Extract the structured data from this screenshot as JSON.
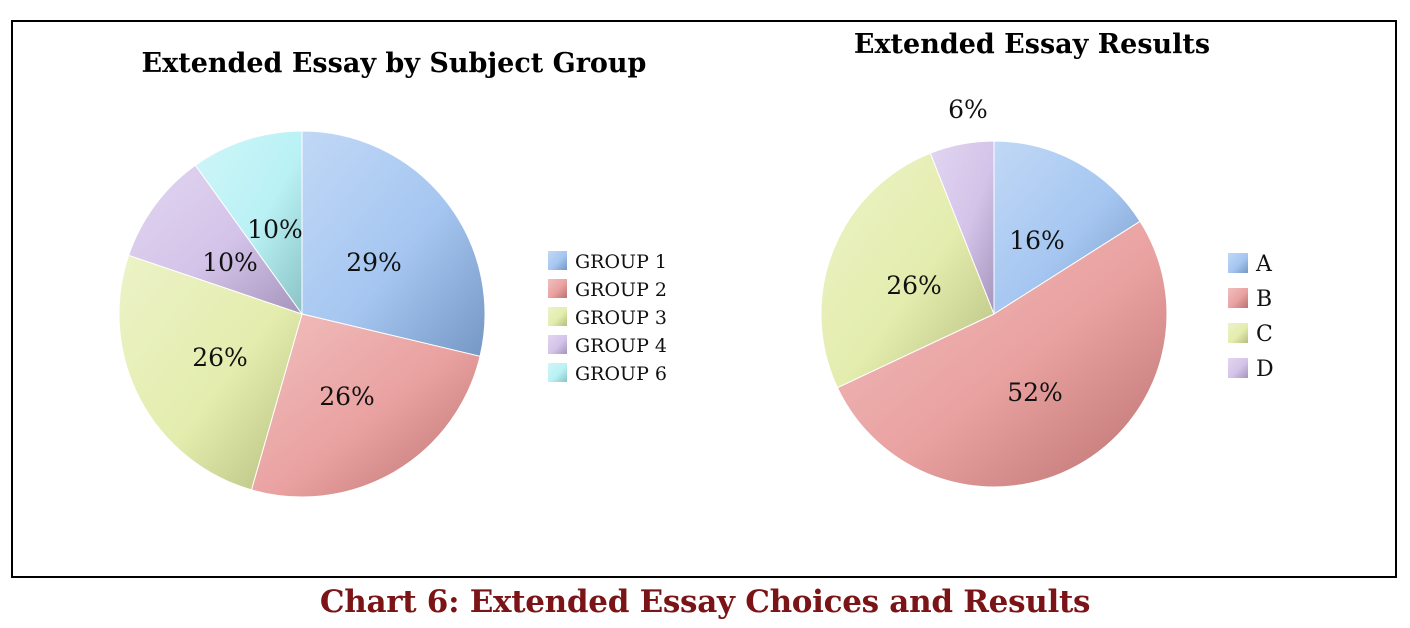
{
  "caption": "Chart 6: Extended Essay Choices and Results",
  "colors": {
    "group1": "#8fb8ee",
    "group2": "#e38a88",
    "group3": "#dde89a",
    "group4": "#c9b4e4",
    "group6": "#a8eef2",
    "caption": "#7b1416"
  },
  "chart_data": [
    {
      "type": "pie",
      "title": "Extended Essay by Subject Group",
      "categories": [
        "GROUP 1",
        "GROUP 2",
        "GROUP 3",
        "GROUP 4",
        "GROUP 6"
      ],
      "values": [
        29,
        26,
        26,
        10,
        10
      ],
      "data_labels": [
        "29%",
        "26%",
        "26%",
        "10%",
        "10%"
      ],
      "legend_position": "right"
    },
    {
      "type": "pie",
      "title": "Extended Essay Results",
      "categories": [
        "A",
        "B",
        "C",
        "D"
      ],
      "values": [
        16,
        52,
        26,
        6
      ],
      "data_labels": [
        "16%",
        "52%",
        "26%",
        "6%"
      ],
      "legend_position": "right"
    }
  ]
}
